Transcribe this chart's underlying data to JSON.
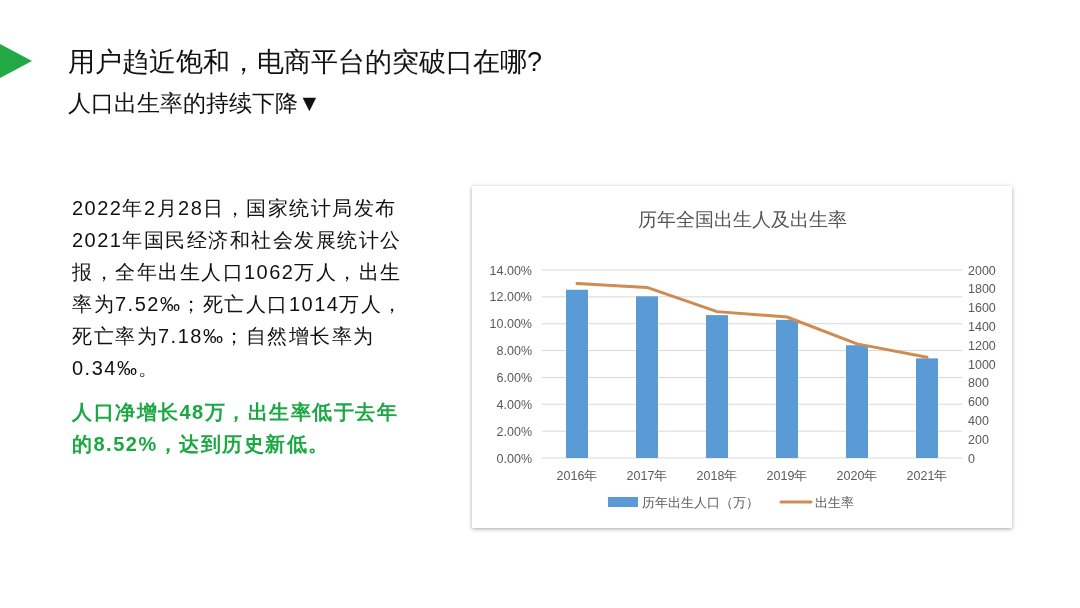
{
  "chart_data": {
    "type": "bar",
    "title": "历年全国出生人及出生率",
    "annotations": [
      "用户趋近饱和，电商平台的突破口在哪?",
      "人口出生率的持续下降▼",
      "2022年2月28日，国家统计局发布2021年国民经济和社会发展统计公报，全年出生人口1062万人，出生率为7.52‰；死亡人口1014万人，死亡率为7.18‰；自然增长率为0.34‰。",
      "人口净增长48万，出生率低于去年的8.52%，达到历史新低。"
    ],
    "categories": [
      "2016年",
      "2017年",
      "2018年",
      "2019年",
      "2020年",
      "2021年"
    ],
    "series": [
      {
        "name": "历年出生人口（万）",
        "axis": "y2",
        "color": "#5b9bd5",
        "values": [
          1790,
          1720,
          1520,
          1470,
          1200,
          1060
        ]
      },
      {
        "name": "出生率",
        "type": "line",
        "axis": "y",
        "color": "#d08b52",
        "values": [
          13.0,
          12.7,
          10.9,
          10.5,
          8.5,
          7.5
        ]
      }
    ],
    "ylim": [
      0,
      14
    ],
    "yticks": [
      {
        "value": 0,
        "label": "0.00%"
      },
      {
        "value": 2,
        "label": "2.00%"
      },
      {
        "value": 4,
        "label": "4.00%"
      },
      {
        "value": 6,
        "label": "6.00%"
      },
      {
        "value": 8,
        "label": "8.00%"
      },
      {
        "value": 10,
        "label": "10.00%"
      },
      {
        "value": 12,
        "label": "12.00%"
      },
      {
        "value": 14,
        "label": "14.00%"
      }
    ],
    "y2lim": [
      0,
      2000
    ],
    "y2ticks": [
      0,
      200,
      400,
      600,
      800,
      1000,
      1200,
      1400,
      1600,
      1800,
      2000
    ],
    "grid": "y",
    "legend": "bottom"
  }
}
